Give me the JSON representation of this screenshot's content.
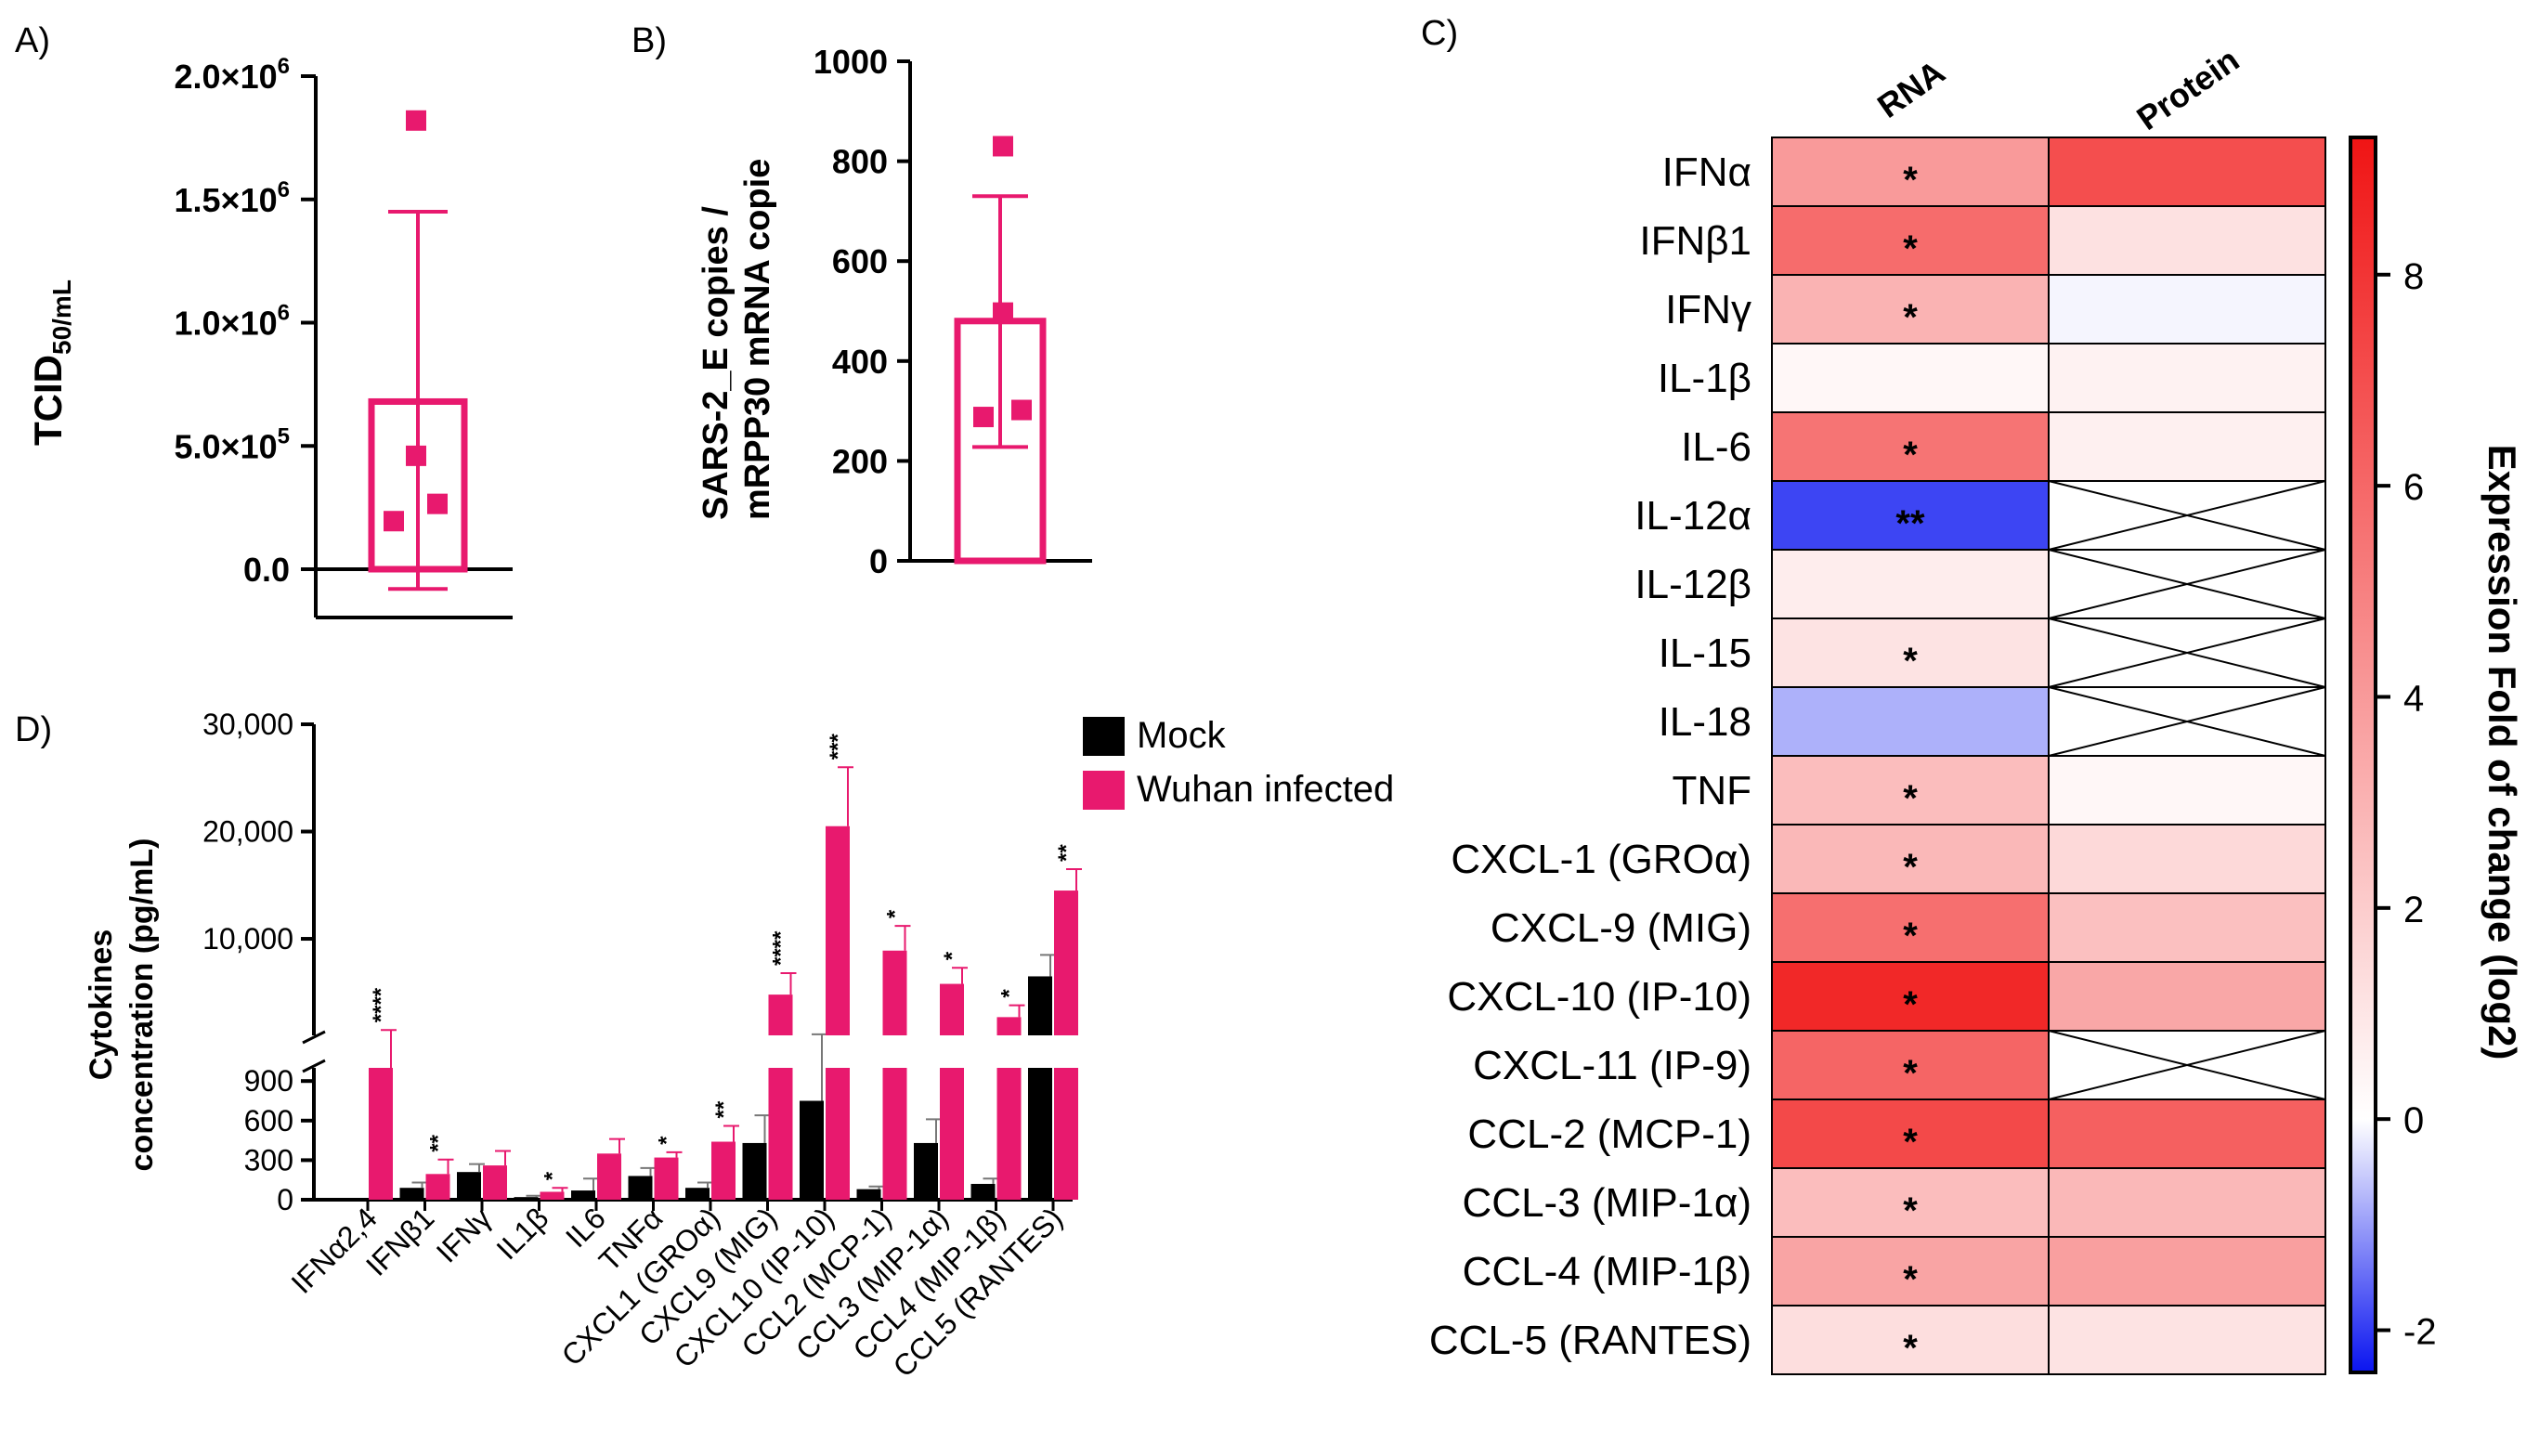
{
  "chart_data": [
    {
      "panel": "A)",
      "type": "bar",
      "ylabel": "TCID",
      "ylabel_sub": "50/mL",
      "ylim": [
        -200000,
        2000000
      ],
      "yticks": [
        {
          "v": 0,
          "label": "0.0"
        },
        {
          "v": 500000,
          "label": "5.0×10",
          "exp": "5"
        },
        {
          "v": 1000000,
          "label": "1.0×10",
          "exp": "6"
        },
        {
          "v": 1500000,
          "label": "1.5×10",
          "exp": "6"
        },
        {
          "v": 2000000,
          "label": "2.0×10",
          "exp": "6"
        }
      ],
      "mean": 680000,
      "sd_upper": 1450000,
      "sd_lower": -80000,
      "points": [
        1820000,
        460000,
        195000,
        265000
      ],
      "color": "#e8196e"
    },
    {
      "panel": "B)",
      "type": "bar",
      "ylabel": [
        "SARS-2_E copies /",
        "mRPP30 mRNA copie"
      ],
      "ylim": [
        0,
        1000
      ],
      "yticks": [
        0,
        200,
        400,
        600,
        800,
        1000
      ],
      "mean": 480,
      "sd_upper": 730,
      "sd_lower": 228,
      "points": [
        830,
        497,
        288,
        302
      ],
      "color": "#e8196e"
    },
    {
      "panel": "C)",
      "type": "heatmap",
      "columns": [
        "RNA",
        "Protein"
      ],
      "rows": [
        "IFNα",
        "IFNβ1",
        "IFNγ",
        "IL-1β",
        "IL-6",
        "IL-12α",
        "IL-12β",
        "IL-15",
        "IL-18",
        "TNF",
        "CXCL-1 (GROα)",
        "CXCL-9 (MIG)",
        "CXCL-10 (IP-10)",
        "CXCL-11 (IP-9)",
        "CCL-2 (MCP-1)",
        "CCL-3 (MIP-1α)",
        "CCL-4 (MIP-1β)",
        "CCL-5 (RANTES)"
      ],
      "values": [
        [
          4.0,
          7.0
        ],
        [
          5.8,
          1.2
        ],
        [
          3.0,
          -0.1
        ],
        [
          0.3,
          0.5
        ],
        [
          5.5,
          0.6
        ],
        [
          -1.9,
          null
        ],
        [
          0.7,
          null
        ],
        [
          1.1,
          null
        ],
        [
          -0.8,
          null
        ],
        [
          2.6,
          0.3
        ],
        [
          2.8,
          1.5
        ],
        [
          5.7,
          2.5
        ],
        [
          8.5,
          3.5
        ],
        [
          6.1,
          null
        ],
        [
          7.2,
          6.3
        ],
        [
          2.6,
          2.8
        ],
        [
          3.6,
          3.8
        ],
        [
          1.3,
          1.1
        ]
      ],
      "significance": [
        "*",
        "*",
        "*",
        "",
        "*",
        "**",
        "",
        "*",
        "",
        "*",
        "*",
        "*",
        "*",
        "*",
        "*",
        "*",
        "*",
        "*"
      ],
      "colorbar": {
        "label": "Expression Fold of change (log2)",
        "range": [
          -2.4,
          9.3
        ],
        "ticks": [
          -2,
          0,
          2,
          4,
          6,
          8
        ]
      }
    },
    {
      "panel": "D)",
      "type": "bar",
      "ylabel": [
        "Cytokines",
        "concentration (pg/mL)"
      ],
      "categories": [
        "IFNα2,4",
        "IFNβ1",
        "IFNγ",
        "IL1β",
        "IL6",
        "TNFα",
        "CXCL1 (GROα)",
        "CXCL9 (MIG)",
        "CXCL10 (IP-10)",
        "CCL2 (MCP-1)",
        "CCL3 (MIP-1α)",
        "CCL4 (MIP-1β)",
        "CCL5 (RANTES)"
      ],
      "series": [
        {
          "name": "Mock",
          "color": "#000000",
          "values": [
            0,
            90,
            210,
            20,
            70,
            180,
            90,
            430,
            750,
            80,
            430,
            120,
            6500
          ],
          "errors": [
            0,
            40,
            60,
            10,
            90,
            60,
            40,
            210,
            350,
            20,
            180,
            40,
            2000
          ]
        },
        {
          "name": "Wuhan infected",
          "color": "#e8196e",
          "values": [
            1000,
            195,
            260,
            60,
            350,
            320,
            440,
            4800,
            20500,
            8900,
            5800,
            2700,
            14500
          ],
          "errors": [
            500,
            110,
            110,
            30,
            110,
            40,
            120,
            2000,
            5500,
            2300,
            1500,
            1100,
            2000
          ]
        }
      ],
      "significance": [
        "****",
        "**",
        "",
        "*",
        "",
        "*",
        "**",
        "****",
        "***",
        "*",
        "*",
        "*",
        "**"
      ],
      "lower_axis": {
        "ylim": [
          0,
          1000
        ],
        "ticks": [
          0,
          300,
          600,
          900
        ]
      },
      "upper_axis": {
        "ylim": [
          1000,
          30000
        ],
        "ticks": [
          10000,
          20000,
          30000
        ],
        "tick_labels": [
          "10,000",
          "20,000",
          "30,000"
        ]
      }
    }
  ]
}
